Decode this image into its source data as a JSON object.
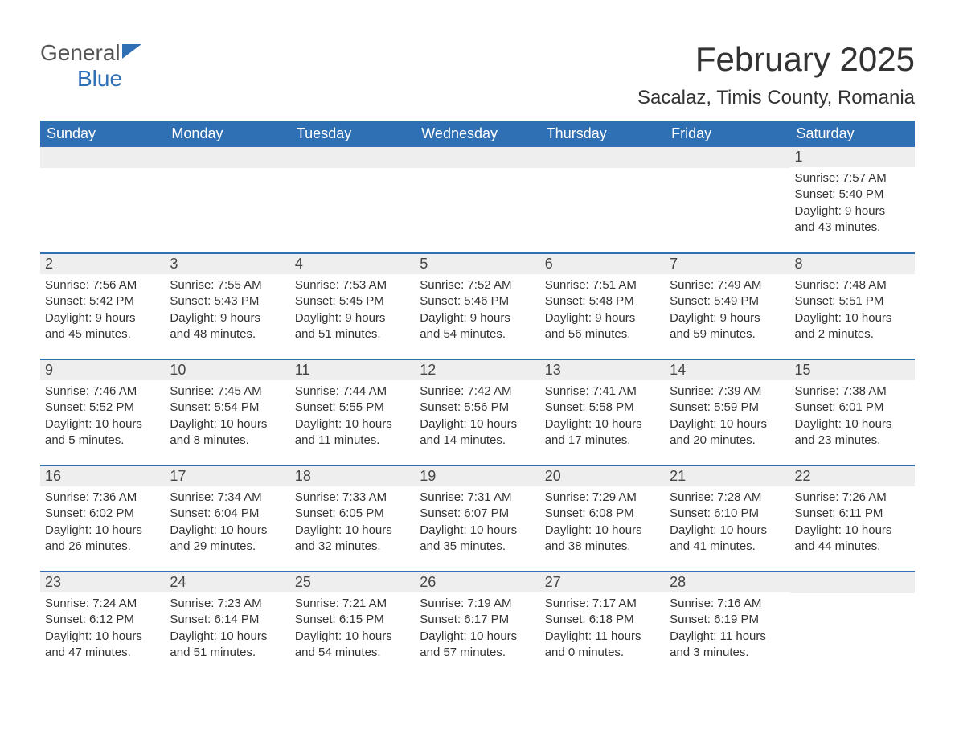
{
  "logo": {
    "text_general": "General",
    "text_blue": "Blue",
    "icon_color": "#2f6fb3"
  },
  "title": "February 2025",
  "location": "Sacalaz, Timis County, Romania",
  "day_headers": [
    "Sunday",
    "Monday",
    "Tuesday",
    "Wednesday",
    "Thursday",
    "Friday",
    "Saturday"
  ],
  "colors": {
    "header_bg": "#2f6fb3",
    "header_text": "#ffffff",
    "daynum_bg": "#eeeeee",
    "body_text": "#333333",
    "row_separator": "#2f6fb3",
    "background": "#ffffff"
  },
  "fonts": {
    "title_size_pt": 32,
    "location_size_pt": 18,
    "header_size_pt": 14,
    "daynum_size_pt": 14,
    "body_size_pt": 11
  },
  "weeks": [
    [
      null,
      null,
      null,
      null,
      null,
      null,
      {
        "n": "1",
        "sunrise": "Sunrise: 7:57 AM",
        "sunset": "Sunset: 5:40 PM",
        "day1": "Daylight: 9 hours",
        "day2": "and 43 minutes."
      }
    ],
    [
      {
        "n": "2",
        "sunrise": "Sunrise: 7:56 AM",
        "sunset": "Sunset: 5:42 PM",
        "day1": "Daylight: 9 hours",
        "day2": "and 45 minutes."
      },
      {
        "n": "3",
        "sunrise": "Sunrise: 7:55 AM",
        "sunset": "Sunset: 5:43 PM",
        "day1": "Daylight: 9 hours",
        "day2": "and 48 minutes."
      },
      {
        "n": "4",
        "sunrise": "Sunrise: 7:53 AM",
        "sunset": "Sunset: 5:45 PM",
        "day1": "Daylight: 9 hours",
        "day2": "and 51 minutes."
      },
      {
        "n": "5",
        "sunrise": "Sunrise: 7:52 AM",
        "sunset": "Sunset: 5:46 PM",
        "day1": "Daylight: 9 hours",
        "day2": "and 54 minutes."
      },
      {
        "n": "6",
        "sunrise": "Sunrise: 7:51 AM",
        "sunset": "Sunset: 5:48 PM",
        "day1": "Daylight: 9 hours",
        "day2": "and 56 minutes."
      },
      {
        "n": "7",
        "sunrise": "Sunrise: 7:49 AM",
        "sunset": "Sunset: 5:49 PM",
        "day1": "Daylight: 9 hours",
        "day2": "and 59 minutes."
      },
      {
        "n": "8",
        "sunrise": "Sunrise: 7:48 AM",
        "sunset": "Sunset: 5:51 PM",
        "day1": "Daylight: 10 hours",
        "day2": "and 2 minutes."
      }
    ],
    [
      {
        "n": "9",
        "sunrise": "Sunrise: 7:46 AM",
        "sunset": "Sunset: 5:52 PM",
        "day1": "Daylight: 10 hours",
        "day2": "and 5 minutes."
      },
      {
        "n": "10",
        "sunrise": "Sunrise: 7:45 AM",
        "sunset": "Sunset: 5:54 PM",
        "day1": "Daylight: 10 hours",
        "day2": "and 8 minutes."
      },
      {
        "n": "11",
        "sunrise": "Sunrise: 7:44 AM",
        "sunset": "Sunset: 5:55 PM",
        "day1": "Daylight: 10 hours",
        "day2": "and 11 minutes."
      },
      {
        "n": "12",
        "sunrise": "Sunrise: 7:42 AM",
        "sunset": "Sunset: 5:56 PM",
        "day1": "Daylight: 10 hours",
        "day2": "and 14 minutes."
      },
      {
        "n": "13",
        "sunrise": "Sunrise: 7:41 AM",
        "sunset": "Sunset: 5:58 PM",
        "day1": "Daylight: 10 hours",
        "day2": "and 17 minutes."
      },
      {
        "n": "14",
        "sunrise": "Sunrise: 7:39 AM",
        "sunset": "Sunset: 5:59 PM",
        "day1": "Daylight: 10 hours",
        "day2": "and 20 minutes."
      },
      {
        "n": "15",
        "sunrise": "Sunrise: 7:38 AM",
        "sunset": "Sunset: 6:01 PM",
        "day1": "Daylight: 10 hours",
        "day2": "and 23 minutes."
      }
    ],
    [
      {
        "n": "16",
        "sunrise": "Sunrise: 7:36 AM",
        "sunset": "Sunset: 6:02 PM",
        "day1": "Daylight: 10 hours",
        "day2": "and 26 minutes."
      },
      {
        "n": "17",
        "sunrise": "Sunrise: 7:34 AM",
        "sunset": "Sunset: 6:04 PM",
        "day1": "Daylight: 10 hours",
        "day2": "and 29 minutes."
      },
      {
        "n": "18",
        "sunrise": "Sunrise: 7:33 AM",
        "sunset": "Sunset: 6:05 PM",
        "day1": "Daylight: 10 hours",
        "day2": "and 32 minutes."
      },
      {
        "n": "19",
        "sunrise": "Sunrise: 7:31 AM",
        "sunset": "Sunset: 6:07 PM",
        "day1": "Daylight: 10 hours",
        "day2": "and 35 minutes."
      },
      {
        "n": "20",
        "sunrise": "Sunrise: 7:29 AM",
        "sunset": "Sunset: 6:08 PM",
        "day1": "Daylight: 10 hours",
        "day2": "and 38 minutes."
      },
      {
        "n": "21",
        "sunrise": "Sunrise: 7:28 AM",
        "sunset": "Sunset: 6:10 PM",
        "day1": "Daylight: 10 hours",
        "day2": "and 41 minutes."
      },
      {
        "n": "22",
        "sunrise": "Sunrise: 7:26 AM",
        "sunset": "Sunset: 6:11 PM",
        "day1": "Daylight: 10 hours",
        "day2": "and 44 minutes."
      }
    ],
    [
      {
        "n": "23",
        "sunrise": "Sunrise: 7:24 AM",
        "sunset": "Sunset: 6:12 PM",
        "day1": "Daylight: 10 hours",
        "day2": "and 47 minutes."
      },
      {
        "n": "24",
        "sunrise": "Sunrise: 7:23 AM",
        "sunset": "Sunset: 6:14 PM",
        "day1": "Daylight: 10 hours",
        "day2": "and 51 minutes."
      },
      {
        "n": "25",
        "sunrise": "Sunrise: 7:21 AM",
        "sunset": "Sunset: 6:15 PM",
        "day1": "Daylight: 10 hours",
        "day2": "and 54 minutes."
      },
      {
        "n": "26",
        "sunrise": "Sunrise: 7:19 AM",
        "sunset": "Sunset: 6:17 PM",
        "day1": "Daylight: 10 hours",
        "day2": "and 57 minutes."
      },
      {
        "n": "27",
        "sunrise": "Sunrise: 7:17 AM",
        "sunset": "Sunset: 6:18 PM",
        "day1": "Daylight: 11 hours",
        "day2": "and 0 minutes."
      },
      {
        "n": "28",
        "sunrise": "Sunrise: 7:16 AM",
        "sunset": "Sunset: 6:19 PM",
        "day1": "Daylight: 11 hours",
        "day2": "and 3 minutes."
      },
      null
    ]
  ]
}
